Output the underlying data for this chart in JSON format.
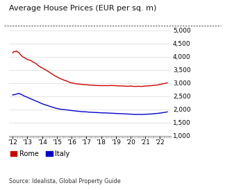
{
  "title": "Average House Prices (EUR per sq. m)",
  "source": "Source: Idealista, Global Property Guide",
  "ylim": [
    1000,
    5000
  ],
  "yticks": [
    1000,
    1500,
    2000,
    2500,
    3000,
    3500,
    4000,
    4500,
    5000
  ],
  "background_color": "#ffffff",
  "plot_bg_color": "#ffffff",
  "grid_color": "#d8d8d8",
  "rome_color": "#cc0000",
  "italy_color": "#0000cc",
  "legend_labels": [
    "Rome",
    "Italy"
  ],
  "xlim": [
    2011.75,
    2022.75
  ],
  "xtick_positions": [
    2012,
    2013,
    2014,
    2015,
    2016,
    2017,
    2018,
    2019,
    2020,
    2021,
    2022
  ],
  "xtick_labels": [
    "'12",
    "'13",
    "'14",
    "'15",
    "'16",
    "'17",
    "'18",
    "'19",
    "'20",
    "'21",
    "'22"
  ],
  "rome_data": {
    "dates": [
      2012.0,
      2012.083,
      2012.167,
      2012.25,
      2012.333,
      2012.417,
      2012.5,
      2012.583,
      2012.667,
      2012.75,
      2012.833,
      2012.917,
      2013.0,
      2013.083,
      2013.167,
      2013.25,
      2013.333,
      2013.417,
      2013.5,
      2013.583,
      2013.667,
      2013.75,
      2013.833,
      2013.917,
      2014.0,
      2014.083,
      2014.167,
      2014.25,
      2014.333,
      2014.417,
      2014.5,
      2014.583,
      2014.667,
      2014.75,
      2014.833,
      2014.917,
      2015.0,
      2015.083,
      2015.167,
      2015.25,
      2015.333,
      2015.417,
      2015.5,
      2015.583,
      2015.667,
      2015.75,
      2015.833,
      2015.917,
      2016.0,
      2016.083,
      2016.167,
      2016.25,
      2016.333,
      2016.417,
      2016.5,
      2016.583,
      2016.667,
      2016.75,
      2016.833,
      2016.917,
      2017.0,
      2017.083,
      2017.167,
      2017.25,
      2017.333,
      2017.417,
      2017.5,
      2017.583,
      2017.667,
      2017.75,
      2017.833,
      2017.917,
      2018.0,
      2018.083,
      2018.167,
      2018.25,
      2018.333,
      2018.417,
      2018.5,
      2018.583,
      2018.667,
      2018.75,
      2018.833,
      2018.917,
      2019.0,
      2019.083,
      2019.167,
      2019.25,
      2019.333,
      2019.417,
      2019.5,
      2019.583,
      2019.667,
      2019.75,
      2019.833,
      2019.917,
      2020.0,
      2020.083,
      2020.167,
      2020.25,
      2020.333,
      2020.417,
      2020.5,
      2020.583,
      2020.667,
      2020.75,
      2020.833,
      2020.917,
      2021.0,
      2021.083,
      2021.167,
      2021.25,
      2021.333,
      2021.417,
      2021.5,
      2021.583,
      2021.667,
      2021.75,
      2021.833,
      2021.917,
      2022.0,
      2022.083,
      2022.167,
      2022.25,
      2022.333,
      2022.417,
      2022.5
    ],
    "values": [
      4150,
      4200,
      4190,
      4220,
      4180,
      4160,
      4100,
      4050,
      4000,
      3980,
      3950,
      3920,
      3900,
      3880,
      3870,
      3850,
      3820,
      3790,
      3770,
      3740,
      3700,
      3660,
      3630,
      3600,
      3580,
      3550,
      3520,
      3500,
      3470,
      3440,
      3410,
      3380,
      3350,
      3320,
      3290,
      3260,
      3240,
      3210,
      3190,
      3170,
      3150,
      3130,
      3110,
      3095,
      3080,
      3060,
      3040,
      3020,
      3010,
      3000,
      2990,
      2980,
      2975,
      2970,
      2965,
      2960,
      2955,
      2950,
      2945,
      2940,
      2940,
      2935,
      2930,
      2925,
      2925,
      2920,
      2920,
      2915,
      2910,
      2910,
      2908,
      2905,
      2905,
      2905,
      2905,
      2905,
      2905,
      2905,
      2905,
      2905,
      2910,
      2910,
      2905,
      2905,
      2905,
      2900,
      2895,
      2895,
      2895,
      2895,
      2890,
      2890,
      2885,
      2880,
      2880,
      2885,
      2890,
      2885,
      2880,
      2875,
      2875,
      2875,
      2880,
      2880,
      2875,
      2875,
      2880,
      2885,
      2890,
      2890,
      2895,
      2895,
      2900,
      2905,
      2910,
      2915,
      2920,
      2925,
      2930,
      2940,
      2950,
      2960,
      2970,
      2980,
      2990,
      3000,
      3010
    ]
  },
  "italy_data": {
    "dates": [
      2012.0,
      2012.083,
      2012.167,
      2012.25,
      2012.333,
      2012.417,
      2012.5,
      2012.583,
      2012.667,
      2012.75,
      2012.833,
      2012.917,
      2013.0,
      2013.083,
      2013.167,
      2013.25,
      2013.333,
      2013.417,
      2013.5,
      2013.583,
      2013.667,
      2013.75,
      2013.833,
      2013.917,
      2014.0,
      2014.083,
      2014.167,
      2014.25,
      2014.333,
      2014.417,
      2014.5,
      2014.583,
      2014.667,
      2014.75,
      2014.833,
      2014.917,
      2015.0,
      2015.083,
      2015.167,
      2015.25,
      2015.333,
      2015.417,
      2015.5,
      2015.583,
      2015.667,
      2015.75,
      2015.833,
      2015.917,
      2016.0,
      2016.083,
      2016.167,
      2016.25,
      2016.333,
      2016.417,
      2016.5,
      2016.583,
      2016.667,
      2016.75,
      2016.833,
      2016.917,
      2017.0,
      2017.083,
      2017.167,
      2017.25,
      2017.333,
      2017.417,
      2017.5,
      2017.583,
      2017.667,
      2017.75,
      2017.833,
      2017.917,
      2018.0,
      2018.083,
      2018.167,
      2018.25,
      2018.333,
      2018.417,
      2018.5,
      2018.583,
      2018.667,
      2018.75,
      2018.833,
      2018.917,
      2019.0,
      2019.083,
      2019.167,
      2019.25,
      2019.333,
      2019.417,
      2019.5,
      2019.583,
      2019.667,
      2019.75,
      2019.833,
      2019.917,
      2020.0,
      2020.083,
      2020.167,
      2020.25,
      2020.333,
      2020.417,
      2020.5,
      2020.583,
      2020.667,
      2020.75,
      2020.833,
      2020.917,
      2021.0,
      2021.083,
      2021.167,
      2021.25,
      2021.333,
      2021.417,
      2021.5,
      2021.583,
      2021.667,
      2021.75,
      2021.833,
      2021.917,
      2022.0,
      2022.083,
      2022.167,
      2022.25,
      2022.333,
      2022.417,
      2022.5
    ],
    "values": [
      2550,
      2560,
      2570,
      2580,
      2600,
      2610,
      2590,
      2570,
      2550,
      2520,
      2500,
      2480,
      2460,
      2440,
      2420,
      2400,
      2380,
      2360,
      2340,
      2320,
      2300,
      2280,
      2260,
      2240,
      2220,
      2200,
      2185,
      2170,
      2155,
      2140,
      2125,
      2110,
      2095,
      2080,
      2065,
      2050,
      2040,
      2030,
      2020,
      2010,
      2005,
      2000,
      1995,
      1990,
      1985,
      1978,
      1972,
      1965,
      1960,
      1955,
      1950,
      1945,
      1940,
      1935,
      1930,
      1925,
      1920,
      1918,
      1915,
      1912,
      1910,
      1905,
      1900,
      1898,
      1895,
      1893,
      1890,
      1888,
      1885,
      1882,
      1880,
      1878,
      1875,
      1873,
      1870,
      1870,
      1870,
      1868,
      1865,
      1863,
      1860,
      1858,
      1855,
      1852,
      1850,
      1848,
      1845,
      1843,
      1840,
      1840,
      1838,
      1836,
      1833,
      1830,
      1828,
      1825,
      1823,
      1820,
      1818,
      1815,
      1812,
      1812,
      1815,
      1815,
      1812,
      1810,
      1812,
      1815,
      1818,
      1820,
      1823,
      1825,
      1828,
      1830,
      1835,
      1840,
      1845,
      1848,
      1852,
      1858,
      1865,
      1870,
      1878,
      1885,
      1892,
      1900,
      1910
    ]
  }
}
